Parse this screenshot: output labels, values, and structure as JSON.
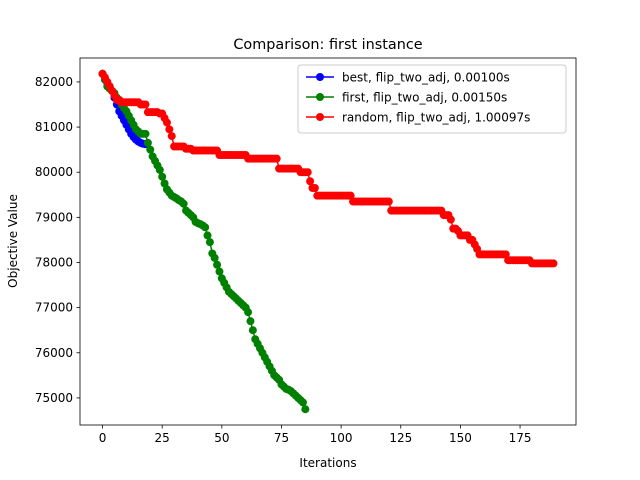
{
  "chart_data": {
    "type": "line",
    "title": "Comparison: first instance",
    "xlabel": "Iterations",
    "ylabel": "Objective Value",
    "xlim": [
      -9.45,
      198.45
    ],
    "ylim": [
      74400,
      82530
    ],
    "xticks": [
      0,
      25,
      50,
      75,
      100,
      125,
      150,
      175
    ],
    "yticks": [
      75000,
      76000,
      77000,
      78000,
      79000,
      80000,
      81000,
      82000
    ],
    "legend": "upper right",
    "series": [
      {
        "name": "best, flip_two_adj, 0.00100s",
        "color": "#0000ff",
        "values": [
          82180,
          82050,
          81980,
          81900,
          81800,
          81650,
          81500,
          81350,
          81250,
          81150,
          81050,
          80950,
          80850,
          80780,
          80720,
          80680,
          80650,
          80630,
          80620
        ]
      },
      {
        "name": "first, flip_two_adj, 0.00150s",
        "color": "#008000",
        "values": [
          82180,
          82050,
          81900,
          81850,
          81800,
          81750,
          81650,
          81600,
          81500,
          81420,
          81350,
          81250,
          81150,
          81050,
          80950,
          80900,
          80850,
          80850,
          80850,
          80650,
          80500,
          80350,
          80250,
          80150,
          80050,
          79900,
          79750,
          79620,
          79550,
          79480,
          79450,
          79420,
          79380,
          79350,
          79300,
          79150,
          79100,
          79050,
          79000,
          78900,
          78870,
          78850,
          78820,
          78780,
          78600,
          78450,
          78200,
          78100,
          77950,
          77800,
          77650,
          77550,
          77450,
          77350,
          77300,
          77250,
          77200,
          77150,
          77100,
          77050,
          77000,
          76900,
          76700,
          76500,
          76300,
          76200,
          76100,
          76000,
          75900,
          75800,
          75700,
          75600,
          75500,
          75450,
          75400,
          75300,
          75250,
          75200,
          75180,
          75150,
          75100,
          75050,
          75000,
          74950,
          74900,
          74750
        ]
      },
      {
        "name": "random, flip_two_adj, 1.00097s",
        "color": "#ff0000",
        "values": [
          82180,
          82100,
          82000,
          81900,
          81800,
          81700,
          81600,
          81600,
          81550,
          81550,
          81550,
          81550,
          81550,
          81550,
          81550,
          81550,
          81500,
          81500,
          81500,
          81330,
          81330,
          81330,
          81330,
          81330,
          81300,
          81300,
          81200,
          81100,
          80950,
          80800,
          80570,
          80570,
          80570,
          80570,
          80570,
          80520,
          80520,
          80520,
          80480,
          80480,
          80480,
          80480,
          80480,
          80480,
          80480,
          80480,
          80480,
          80480,
          80480,
          80380,
          80380,
          80380,
          80380,
          80380,
          80380,
          80380,
          80380,
          80380,
          80380,
          80380,
          80380,
          80300,
          80300,
          80300,
          80300,
          80300,
          80300,
          80300,
          80300,
          80300,
          80300,
          80300,
          80300,
          80300,
          80080,
          80080,
          80080,
          80080,
          80080,
          80080,
          80080,
          80080,
          80080,
          80000,
          80000,
          80000,
          80000,
          79800,
          79650,
          79650,
          79480,
          79480,
          79480,
          79480,
          79480,
          79480,
          79480,
          79480,
          79480,
          79480,
          79480,
          79480,
          79480,
          79480,
          79480,
          79350,
          79350,
          79350,
          79350,
          79350,
          79350,
          79350,
          79350,
          79350,
          79350,
          79350,
          79350,
          79350,
          79350,
          79350,
          79350,
          79150,
          79150,
          79150,
          79150,
          79150,
          79150,
          79150,
          79150,
          79150,
          79150,
          79150,
          79150,
          79150,
          79150,
          79150,
          79150,
          79150,
          79150,
          79150,
          79150,
          79150,
          79150,
          79050,
          79050,
          79050,
          78950,
          78750,
          78750,
          78700,
          78600,
          78600,
          78600,
          78600,
          78500,
          78500,
          78400,
          78300,
          78180,
          78180,
          78180,
          78180,
          78180,
          78180,
          78180,
          78180,
          78180,
          78180,
          78180,
          78180,
          78050,
          78050,
          78050,
          78050,
          78050,
          78050,
          78050,
          78050,
          78050,
          78050,
          77980,
          77980,
          77980,
          77980,
          77980,
          77980,
          77980,
          77980,
          77980,
          77980
        ]
      }
    ]
  }
}
